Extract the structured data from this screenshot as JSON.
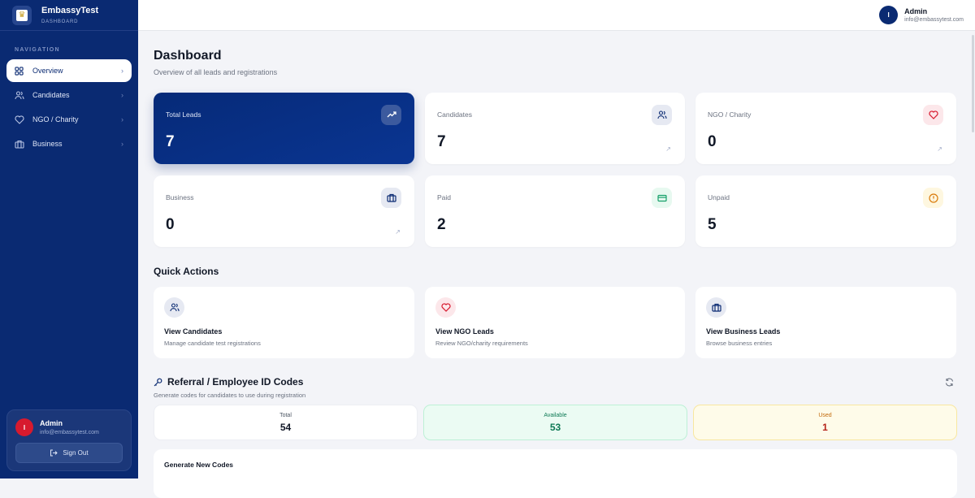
{
  "brand": {
    "name": "EmbassyTest",
    "subtitle": "DASHBOARD"
  },
  "sidebar": {
    "nav_title": "NAVIGATION",
    "items": [
      {
        "label": "Overview",
        "icon": "grid-icon",
        "active": true
      },
      {
        "label": "Candidates",
        "icon": "users-icon"
      },
      {
        "label": "NGO / Charity",
        "icon": "heart-icon"
      },
      {
        "label": "Business",
        "icon": "briefcase-icon"
      }
    ],
    "user": {
      "initial": "I",
      "name": "Admin",
      "email": "info@embassytest.com",
      "sign_out": "Sign Out"
    }
  },
  "topbar": {
    "initial": "I",
    "name": "Admin",
    "email": "info@embassytest.com"
  },
  "page": {
    "title": "Dashboard",
    "subtitle": "Overview of all leads and registrations"
  },
  "stats": [
    {
      "label": "Total Leads",
      "value": "7",
      "icon": "trending-up-icon"
    },
    {
      "label": "Candidates",
      "value": "7",
      "icon": "users-icon"
    },
    {
      "label": "NGO / Charity",
      "value": "0",
      "icon": "heart-icon"
    },
    {
      "label": "Business",
      "value": "0",
      "icon": "briefcase-icon"
    },
    {
      "label": "Paid",
      "value": "2",
      "icon": "credit-card-icon"
    },
    {
      "label": "Unpaid",
      "value": "5",
      "icon": "alert-circle-icon"
    }
  ],
  "quick_actions": {
    "title": "Quick Actions",
    "items": [
      {
        "title": "View Candidates",
        "desc": "Manage candidate test registrations"
      },
      {
        "title": "View NGO Leads",
        "desc": "Review NGO/charity requirements"
      },
      {
        "title": "View Business Leads",
        "desc": "Browse business entries"
      }
    ]
  },
  "referral": {
    "title": "Referral / Employee ID Codes",
    "subtitle": "Generate codes for candidates to use during registration",
    "total_label": "Total",
    "total": "54",
    "available_label": "Available",
    "available": "53",
    "used_label": "Used",
    "used": "1",
    "generate_title": "Generate New Codes"
  },
  "colors": {
    "sidebar": "#0a2a72",
    "accent": "#0a2a72",
    "green": "#0e7a55",
    "red": "#d71a2e",
    "amber": "#c2690a"
  }
}
